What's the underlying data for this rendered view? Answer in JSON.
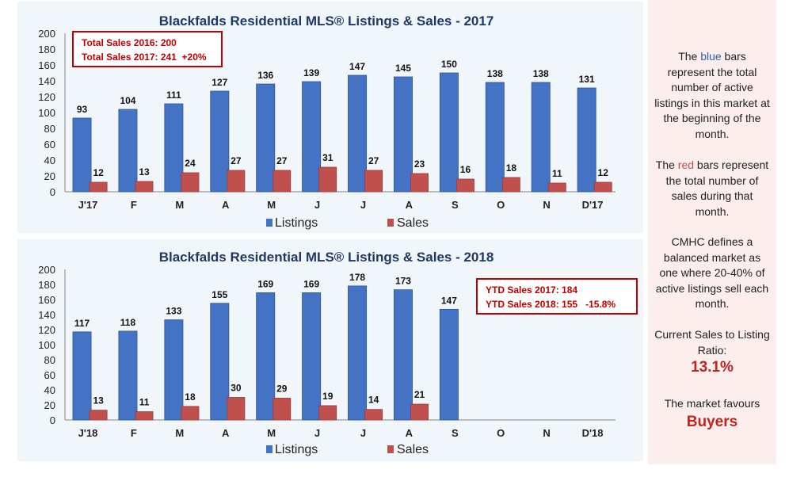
{
  "chart_data": [
    {
      "type": "bar",
      "title": "Blackfalds Residential MLS® Listings & Sales - 2017",
      "categories": [
        "J'17",
        "F",
        "M",
        "A",
        "M",
        "J",
        "J",
        "A",
        "S",
        "O",
        "N",
        "D'17"
      ],
      "series": [
        {
          "name": "Listings",
          "values": [
            93,
            104,
            111,
            127,
            136,
            139,
            147,
            145,
            150,
            138,
            138,
            131
          ]
        },
        {
          "name": "Sales",
          "values": [
            12,
            13,
            24,
            27,
            27,
            31,
            27,
            23,
            16,
            18,
            11,
            12
          ]
        }
      ],
      "ylim": [
        0,
        200
      ],
      "yticks": [
        0,
        20,
        40,
        60,
        80,
        100,
        120,
        140,
        160,
        180,
        200
      ],
      "legend": "bottom",
      "annotation": [
        "Total Sales 2016: 200",
        "Total Sales 2017: 241  +20%"
      ]
    },
    {
      "type": "bar",
      "title": "Blackfalds Residential MLS® Listings & Sales - 2018",
      "categories": [
        "J'18",
        "F",
        "M",
        "A",
        "M",
        "J",
        "J",
        "A",
        "S",
        "O",
        "N",
        "D'18"
      ],
      "series": [
        {
          "name": "Listings",
          "values": [
            117,
            118,
            133,
            155,
            169,
            169,
            178,
            173,
            147,
            null,
            null,
            null
          ]
        },
        {
          "name": "Sales",
          "values": [
            13,
            11,
            18,
            30,
            29,
            19,
            14,
            21,
            null,
            null,
            null,
            null
          ]
        }
      ],
      "ylim": [
        0,
        200
      ],
      "yticks": [
        0,
        20,
        40,
        60,
        80,
        100,
        120,
        140,
        160,
        180,
        200
      ],
      "legend": "bottom",
      "annotation": [
        "YTD Sales 2017: 184",
        "YTD Sales 2018: 155   -15.8%"
      ]
    }
  ],
  "colors": {
    "listings": "#4472c4",
    "sales": "#c0504d",
    "title": "#1f3864",
    "annotation": "#c00000"
  },
  "sidebar": {
    "p1_pre": "The ",
    "p1_blue": "blue",
    "p1_post": " bars represent the total number of active listings in this market at the beginning of the month.",
    "p2_pre": "The ",
    "p2_red": "red",
    "p2_post": " bars represent the total number of sales during that month.",
    "p3": "CMHC defines a balanced market as one where 20-40% of active listings sell each month.",
    "p4": "Current Sales to Listing Ratio:",
    "ratio": "13.1%",
    "p5": "The market favours",
    "verdict": "Buyers"
  }
}
